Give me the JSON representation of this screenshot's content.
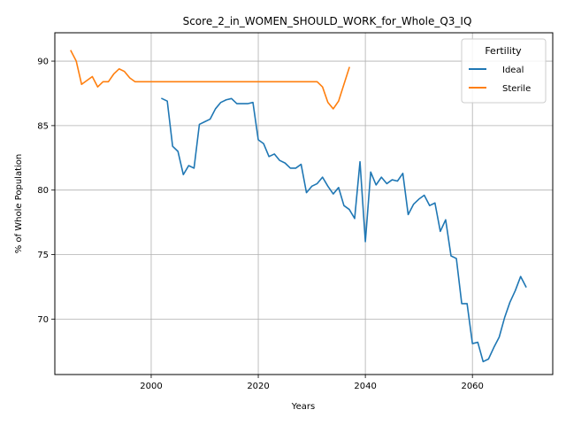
{
  "chart_data": {
    "type": "line",
    "title": "Score_2_in_WOMEN_SHOULD_WORK_for_Whole_Q3_IQ",
    "xlabel": "Years",
    "ylabel": "% of Whole Population",
    "xlim": [
      1982,
      2075
    ],
    "ylim": [
      65.7,
      92.2
    ],
    "xticks": [
      2000,
      2020,
      2040,
      2060
    ],
    "yticks": [
      70,
      75,
      80,
      85,
      90
    ],
    "grid": true,
    "legend": {
      "title": "Fertility",
      "position": "top-right"
    },
    "series": [
      {
        "name": "Ideal",
        "color": "#1f77b4",
        "x": [
          2002,
          2003,
          2004,
          2005,
          2006,
          2007,
          2008,
          2009,
          2010,
          2011,
          2012,
          2013,
          2014,
          2015,
          2016,
          2017,
          2018,
          2019,
          2020,
          2021,
          2022,
          2023,
          2024,
          2025,
          2026,
          2027,
          2028,
          2029,
          2030,
          2031,
          2032,
          2033,
          2034,
          2035,
          2036,
          2037,
          2038,
          2039,
          2040,
          2041,
          2042,
          2043,
          2044,
          2045,
          2046,
          2047,
          2048,
          2049,
          2050,
          2051,
          2052,
          2053,
          2054,
          2055,
          2056,
          2057,
          2058,
          2059,
          2060,
          2061,
          2062,
          2063,
          2064,
          2065,
          2066,
          2067,
          2068,
          2069,
          2070
        ],
        "values": [
          87.1,
          86.9,
          83.4,
          83.0,
          81.2,
          81.9,
          81.7,
          85.1,
          85.3,
          85.5,
          86.3,
          86.8,
          87.0,
          87.1,
          86.7,
          86.7,
          86.7,
          86.8,
          83.9,
          83.6,
          82.6,
          82.8,
          82.3,
          82.1,
          81.7,
          81.7,
          82.0,
          79.8,
          80.3,
          80.5,
          81.0,
          80.3,
          79.7,
          80.2,
          78.8,
          78.5,
          77.8,
          82.2,
          76.0,
          81.4,
          80.4,
          81.0,
          80.5,
          80.8,
          80.7,
          81.3,
          78.1,
          78.9,
          79.3,
          79.6,
          78.8,
          79.0,
          76.8,
          77.7,
          74.9,
          74.7,
          71.2,
          71.2,
          68.1,
          68.2,
          66.7,
          66.9,
          67.8,
          68.6,
          70.1,
          71.3,
          72.2,
          73.3,
          72.5
        ]
      },
      {
        "name": "Sterile",
        "color": "#ff7f0e",
        "x": [
          1985,
          1986,
          1987,
          1988,
          1989,
          1990,
          1991,
          1992,
          1993,
          1994,
          1995,
          1996,
          1997,
          1998,
          1999,
          2000,
          2005,
          2010,
          2015,
          2020,
          2025,
          2030,
          2031,
          2032,
          2033,
          2034,
          2035,
          2036,
          2037
        ],
        "values": [
          90.8,
          90.0,
          88.2,
          88.5,
          88.8,
          88.0,
          88.4,
          88.4,
          89.0,
          89.4,
          89.2,
          88.7,
          88.4,
          88.4,
          88.4,
          88.4,
          88.4,
          88.4,
          88.4,
          88.4,
          88.4,
          88.4,
          88.4,
          88.0,
          86.8,
          86.3,
          86.9,
          88.2,
          89.5
        ]
      }
    ]
  }
}
